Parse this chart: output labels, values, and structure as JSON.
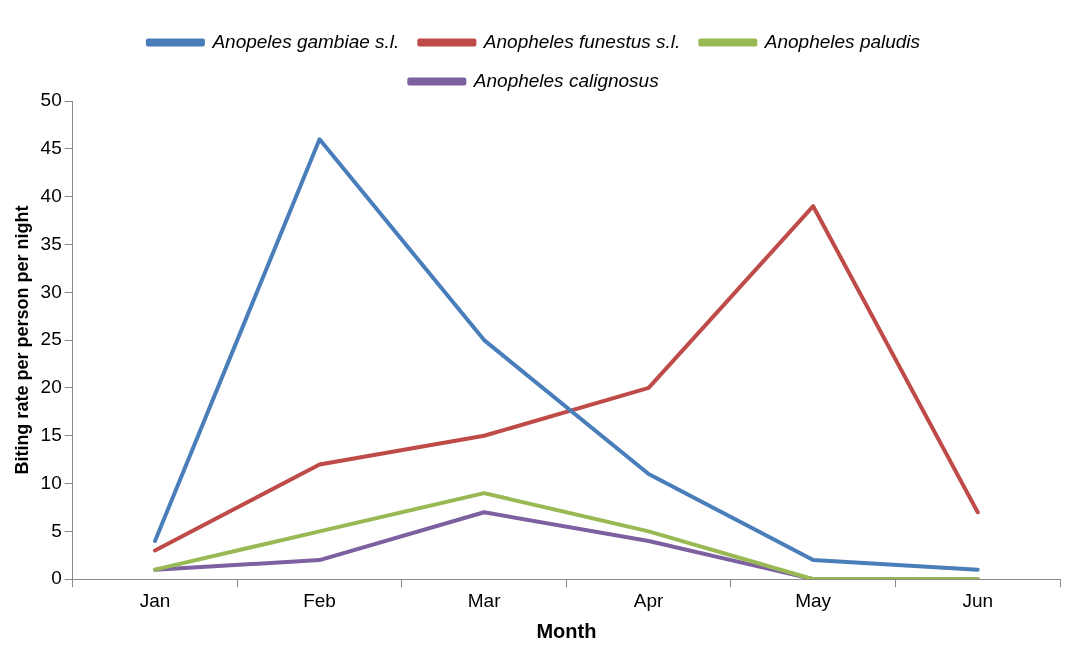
{
  "chart_data": {
    "type": "line",
    "xlabel": "Month",
    "ylabel": "Biting rate per person per night",
    "categories": [
      "Jan",
      "Feb",
      "Mar",
      "Apr",
      "May",
      "Jun"
    ],
    "series": [
      {
        "name": "Anopeles gambiae s.l.",
        "color": "#4a7ebb",
        "values": [
          4,
          46,
          25,
          11,
          2,
          1
        ]
      },
      {
        "name": "Anopheles funestus s.l.",
        "color": "#be4b48",
        "values": [
          3,
          12,
          15,
          20,
          39,
          7
        ]
      },
      {
        "name": "Anopheles paludis",
        "color": "#98b954",
        "values": [
          1,
          5,
          9,
          5,
          0,
          0
        ]
      },
      {
        "name": "Anopheles calignosus",
        "color": "#7d60a0",
        "values": [
          1,
          2,
          7,
          4,
          0,
          0
        ]
      }
    ],
    "ylim": [
      0,
      50
    ],
    "yticks": [
      0,
      5,
      10,
      15,
      20,
      25,
      30,
      35,
      40,
      45,
      50
    ],
    "legend": "top",
    "marker": "none",
    "line_style": "solid"
  }
}
